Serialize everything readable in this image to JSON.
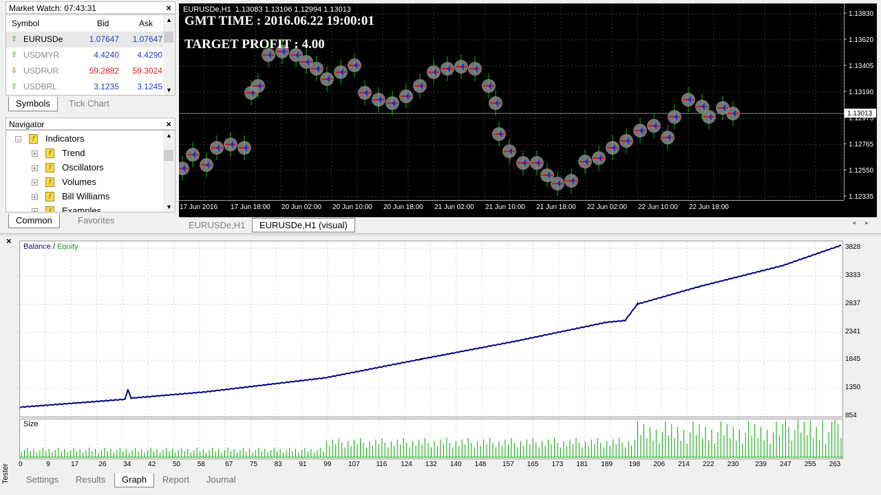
{
  "market_watch": {
    "title": "Market Watch: 07:43:31",
    "headers": {
      "symbol": "Symbol",
      "bid": "Bid",
      "ask": "Ask"
    },
    "rows": [
      {
        "symbol": "EURUSDe",
        "bid": "1.07647",
        "ask": "1.07647",
        "dir": "up",
        "color": "#1f3fbf",
        "symcolor": "#000000",
        "selected": true
      },
      {
        "symbol": "USDMYR",
        "bid": "4.4240",
        "ask": "4.4290",
        "dir": "up",
        "color": "#1f3fbf",
        "symcolor": "#8a8a8a",
        "selected": false
      },
      {
        "symbol": "USDRUR",
        "bid": "59.2882",
        "ask": "59.3024",
        "dir": "down",
        "color": "#d42020",
        "symcolor": "#8a8a8a",
        "selected": false
      },
      {
        "symbol": "USDBRL",
        "bid": "3.1235",
        "ask": "3.1245",
        "dir": "up",
        "color": "#1f3fbf",
        "symcolor": "#8a8a8a",
        "selected": false
      }
    ],
    "tabs": [
      "Symbols",
      "Tick Chart"
    ]
  },
  "navigator": {
    "title": "Navigator",
    "root": "Indicators",
    "items": [
      "Trend",
      "Oscillators",
      "Volumes",
      "Bill Williams",
      "Examples"
    ],
    "tabs": [
      "Common",
      "Favorites"
    ]
  },
  "chart": {
    "info": "EURUSDe,H1  1.13083 1.13106 1.12994 1.13013",
    "gmt": "GMT TIME : 2016.06.22 19:00:01",
    "target": "TARGET PROFIT : 4.00",
    "price_labels": [
      "1.13830",
      "1.13620",
      "1.13405",
      "1.13190",
      "1.12975",
      "1.12765",
      "1.12550",
      "1.12335"
    ],
    "current_price": "1.13013",
    "time_labels": [
      "17 Jun 2016",
      "17 Jun 18:00",
      "20 Jun 02:00",
      "20 Jun 10:00",
      "20 Jun 18:00",
      "21 Jun 02:00",
      "21 Jun 10:00",
      "21 Jun 18:00",
      "22 Jun 02:00",
      "22 Jun 10:00",
      "22 Jun 18:00"
    ],
    "tabs": [
      "EURUSDe,H1",
      "EURUSDe,H1 (visual)"
    ],
    "colors": {
      "background": "#000000",
      "grid": "#3a3a3a",
      "candle": "#00c000",
      "markers": "#8a8a8a"
    }
  },
  "tester": {
    "side_label": "Tester",
    "legend_balance": "Balance",
    "legend_sep": " / ",
    "legend_equity": "Equity",
    "size_label": "Size",
    "tabs": [
      "Settings",
      "Results",
      "Graph",
      "Report",
      "Journal"
    ],
    "active_tab": "Graph",
    "colors": {
      "balance": "#000080",
      "equity": "#00a000",
      "size_bars": "#00a000"
    }
  },
  "chart_data": [
    {
      "type": "line",
      "series": [
        {
          "name": "Balance",
          "x": [
            0,
            34,
            35,
            36,
            60,
            99,
            130,
            160,
            190,
            196,
            200,
            220,
            247,
            266
          ],
          "values": [
            1020,
            1160,
            1330,
            1180,
            1290,
            1540,
            1870,
            2180,
            2520,
            2550,
            2840,
            3150,
            3520,
            3880
          ]
        }
      ],
      "y_tick_labels": [
        "3828",
        "3333",
        "2837",
        "2341",
        "1845",
        "1350",
        "854"
      ],
      "ylim": [
        854,
        3950
      ],
      "xlim": [
        0,
        266
      ],
      "title": "Balance / Equity"
    },
    {
      "type": "bar",
      "series": [
        {
          "name": "Size",
          "x_start": 0,
          "x_end": 266,
          "values_early": 0.3,
          "values_late": 0.95
        }
      ],
      "x_tick_labels": [
        "0",
        "9",
        "17",
        "26",
        "34",
        "42",
        "50",
        "58",
        "67",
        "75",
        "83",
        "91",
        "99",
        "107",
        "116",
        "124",
        "132",
        "140",
        "148",
        "157",
        "165",
        "173",
        "181",
        "189",
        "198",
        "206",
        "214",
        "222",
        "230",
        "239",
        "247",
        "255",
        "263"
      ],
      "xlim": [
        0,
        266
      ]
    }
  ]
}
